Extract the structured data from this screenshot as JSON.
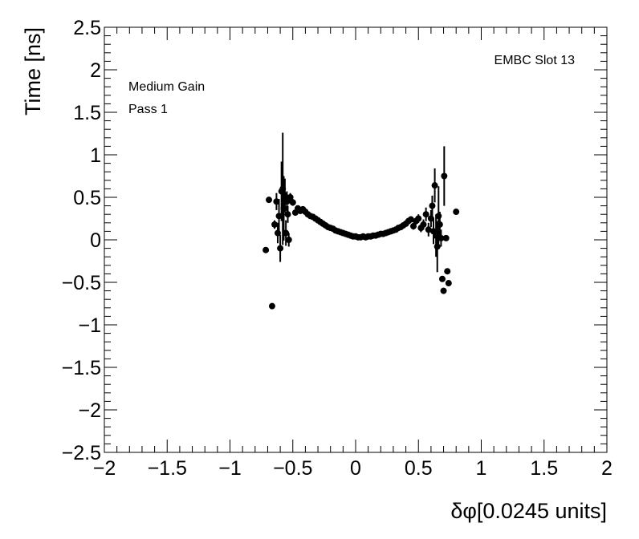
{
  "chart_data": {
    "type": "scatter",
    "xlabel": "δφ[0.0245 units]",
    "ylabel": "Time [ns]",
    "xlim": [
      -2,
      2
    ],
    "ylim": [
      -2.5,
      2.5
    ],
    "x_ticks": [
      -2,
      -1.5,
      -1,
      -0.5,
      0,
      0.5,
      1,
      1.5,
      2
    ],
    "x_tick_labels": [
      "−2",
      "−1.5",
      "−1",
      "−0.5",
      "0",
      "0.5",
      "1",
      "1.5",
      "2"
    ],
    "y_ticks": [
      -2.5,
      -2,
      -1.5,
      -1,
      -0.5,
      0,
      0.5,
      1,
      1.5,
      2,
      2.5
    ],
    "y_tick_labels": [
      "−2.5",
      "−2",
      "−1.5",
      "−1",
      "−0.5",
      "0",
      "0.5",
      "1",
      "1.5",
      "2",
      "2.5"
    ],
    "annotations": {
      "slot": "EMBC Slot 13",
      "gain": "Medium Gain",
      "pass": "Pass 1"
    },
    "grid": false,
    "marker_color": "#000000",
    "points": [
      {
        "x": -0.715,
        "y": -0.12,
        "err": 0
      },
      {
        "x": -0.69,
        "y": 0.47,
        "err": 0
      },
      {
        "x": -0.665,
        "y": -0.78,
        "err": 0
      },
      {
        "x": -0.645,
        "y": 0.18,
        "err": 0.05
      },
      {
        "x": -0.63,
        "y": 0.45,
        "err": 0.1
      },
      {
        "x": -0.62,
        "y": 0.08,
        "err": 0.12
      },
      {
        "x": -0.61,
        "y": 0.28,
        "err": 0.2
      },
      {
        "x": -0.6,
        "y": -0.1,
        "err": 0.16
      },
      {
        "x": -0.59,
        "y": 0.57,
        "err": 0.35
      },
      {
        "x": -0.58,
        "y": 0.6,
        "err": 0.66
      },
      {
        "x": -0.572,
        "y": 0.37,
        "err": 0.38
      },
      {
        "x": -0.563,
        "y": 0.52,
        "err": 0.2
      },
      {
        "x": -0.555,
        "y": 0.08,
        "err": 0.15
      },
      {
        "x": -0.547,
        "y": 0.45,
        "err": 0.12
      },
      {
        "x": -0.54,
        "y": 0.3,
        "err": 0.1
      },
      {
        "x": -0.532,
        "y": 0.0,
        "err": 0.08
      },
      {
        "x": -0.52,
        "y": 0.5,
        "err": 0.05
      },
      {
        "x": -0.5,
        "y": 0.44,
        "err": 0.04
      },
      {
        "x": -0.48,
        "y": 0.32,
        "err": 0.03
      },
      {
        "x": -0.46,
        "y": 0.37,
        "err": 0.03
      },
      {
        "x": -0.44,
        "y": 0.34,
        "err": 0.02
      },
      {
        "x": -0.42,
        "y": 0.36,
        "err": 0.02
      },
      {
        "x": -0.4,
        "y": 0.33,
        "err": 0.02
      },
      {
        "x": -0.38,
        "y": 0.3,
        "err": 0.02
      },
      {
        "x": -0.36,
        "y": 0.28,
        "err": 0.02
      },
      {
        "x": -0.34,
        "y": 0.27,
        "err": 0.02
      },
      {
        "x": -0.32,
        "y": 0.25,
        "err": 0.02
      },
      {
        "x": -0.3,
        "y": 0.23,
        "err": 0.02
      },
      {
        "x": -0.28,
        "y": 0.21,
        "err": 0.02
      },
      {
        "x": -0.26,
        "y": 0.19,
        "err": 0.02
      },
      {
        "x": -0.24,
        "y": 0.17,
        "err": 0.02
      },
      {
        "x": -0.22,
        "y": 0.15,
        "err": 0.02
      },
      {
        "x": -0.2,
        "y": 0.14,
        "err": 0.02
      },
      {
        "x": -0.18,
        "y": 0.13,
        "err": 0.02
      },
      {
        "x": -0.16,
        "y": 0.11,
        "err": 0.02
      },
      {
        "x": -0.14,
        "y": 0.1,
        "err": 0.02
      },
      {
        "x": -0.12,
        "y": 0.09,
        "err": 0.02
      },
      {
        "x": -0.1,
        "y": 0.08,
        "err": 0.02
      },
      {
        "x": -0.08,
        "y": 0.07,
        "err": 0.02
      },
      {
        "x": -0.06,
        "y": 0.06,
        "err": 0.02
      },
      {
        "x": -0.04,
        "y": 0.05,
        "err": 0.02
      },
      {
        "x": -0.02,
        "y": 0.04,
        "err": 0.02
      },
      {
        "x": 0.0,
        "y": 0.04,
        "err": 0.02
      },
      {
        "x": 0.02,
        "y": 0.03,
        "err": 0.02
      },
      {
        "x": 0.04,
        "y": 0.03,
        "err": 0.02
      },
      {
        "x": 0.06,
        "y": 0.04,
        "err": 0.02
      },
      {
        "x": 0.08,
        "y": 0.03,
        "err": 0.02
      },
      {
        "x": 0.1,
        "y": 0.04,
        "err": 0.02
      },
      {
        "x": 0.12,
        "y": 0.04,
        "err": 0.02
      },
      {
        "x": 0.14,
        "y": 0.05,
        "err": 0.02
      },
      {
        "x": 0.16,
        "y": 0.05,
        "err": 0.02
      },
      {
        "x": 0.18,
        "y": 0.06,
        "err": 0.02
      },
      {
        "x": 0.2,
        "y": 0.07,
        "err": 0.02
      },
      {
        "x": 0.22,
        "y": 0.07,
        "err": 0.02
      },
      {
        "x": 0.24,
        "y": 0.08,
        "err": 0.02
      },
      {
        "x": 0.26,
        "y": 0.09,
        "err": 0.02
      },
      {
        "x": 0.28,
        "y": 0.1,
        "err": 0.02
      },
      {
        "x": 0.3,
        "y": 0.11,
        "err": 0.02
      },
      {
        "x": 0.32,
        "y": 0.12,
        "err": 0.02
      },
      {
        "x": 0.34,
        "y": 0.14,
        "err": 0.02
      },
      {
        "x": 0.36,
        "y": 0.15,
        "err": 0.02
      },
      {
        "x": 0.38,
        "y": 0.17,
        "err": 0.02
      },
      {
        "x": 0.4,
        "y": 0.19,
        "err": 0.03
      },
      {
        "x": 0.42,
        "y": 0.22,
        "err": 0.03
      },
      {
        "x": 0.44,
        "y": 0.24,
        "err": 0.03
      },
      {
        "x": 0.46,
        "y": 0.16,
        "err": 0.04
      },
      {
        "x": 0.48,
        "y": 0.22,
        "err": 0.04
      },
      {
        "x": 0.5,
        "y": 0.25,
        "err": 0.05
      },
      {
        "x": 0.52,
        "y": 0.14,
        "err": 0.05
      },
      {
        "x": 0.54,
        "y": 0.18,
        "err": 0.06
      },
      {
        "x": 0.56,
        "y": 0.3,
        "err": 0.08
      },
      {
        "x": 0.58,
        "y": 0.12,
        "err": 0.08
      },
      {
        "x": 0.6,
        "y": 0.25,
        "err": 0.1
      },
      {
        "x": 0.61,
        "y": 0.4,
        "err": 0.12
      },
      {
        "x": 0.62,
        "y": 0.1,
        "err": 0.15
      },
      {
        "x": 0.63,
        "y": 0.64,
        "err": 0.2
      },
      {
        "x": 0.64,
        "y": 0.05,
        "err": 0.25
      },
      {
        "x": 0.65,
        "y": -0.08,
        "err": 0.3
      },
      {
        "x": 0.66,
        "y": 0.28,
        "err": 0.35
      },
      {
        "x": 0.67,
        "y": 0.18,
        "err": 0.15
      },
      {
        "x": 0.68,
        "y": 0.02,
        "err": 0.1
      },
      {
        "x": 0.69,
        "y": -0.46,
        "err": 0
      },
      {
        "x": 0.7,
        "y": -0.6,
        "err": 0
      },
      {
        "x": 0.705,
        "y": 0.75,
        "err": 0.35
      },
      {
        "x": 0.72,
        "y": 0.02,
        "err": 0
      },
      {
        "x": 0.73,
        "y": -0.37,
        "err": 0
      },
      {
        "x": 0.74,
        "y": -0.51,
        "err": 0
      },
      {
        "x": 0.8,
        "y": 0.33,
        "err": 0
      }
    ]
  }
}
